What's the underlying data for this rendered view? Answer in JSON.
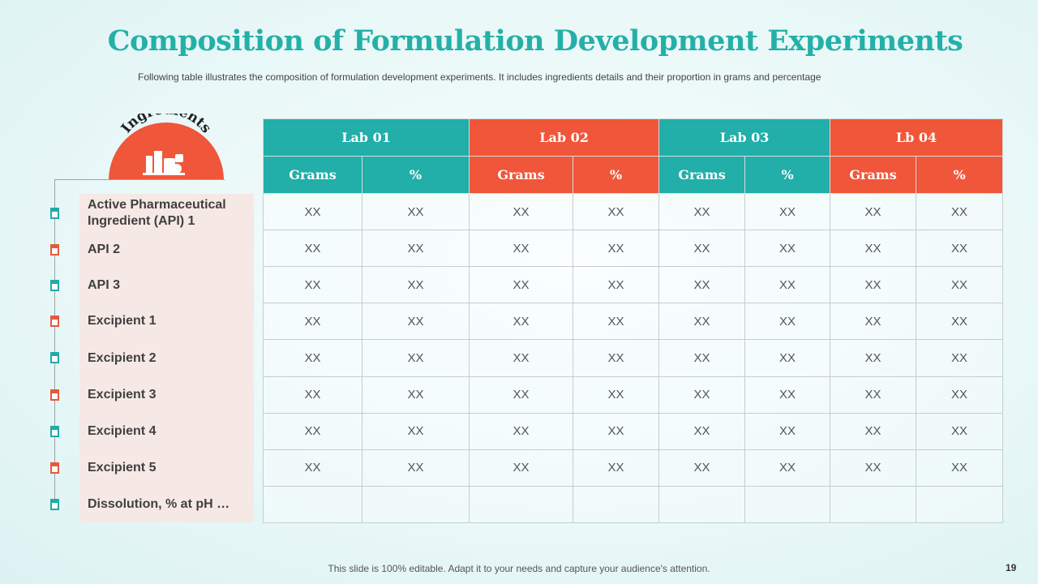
{
  "title": "Composition of Formulation Development Experiments",
  "subtitle": "Following table illustrates the composition of formulation development  experiments. It includes ingredients details and their proportion in grams and percentage",
  "badge_label": "Ingredients",
  "ingredients": [
    {
      "label": "Active Pharmaceutical Ingredient (API) 1",
      "marker": "teal"
    },
    {
      "label": "API 2",
      "marker": "red"
    },
    {
      "label": "API 3",
      "marker": "teal"
    },
    {
      "label": "Excipient 1",
      "marker": "red"
    },
    {
      "label": "Excipient 2",
      "marker": "teal"
    },
    {
      "label": "Excipient 3",
      "marker": "red"
    },
    {
      "label": "Excipient 4",
      "marker": "teal"
    },
    {
      "label": "Excipient 5",
      "marker": "red"
    },
    {
      "label": "Dissolution, % at pH …",
      "marker": "teal"
    }
  ],
  "labs": [
    {
      "name": "Lab 01",
      "color": "#22aea9"
    },
    {
      "name": "Lab 02",
      "color": "#f05639"
    },
    {
      "name": "Lab 03",
      "color": "#22aea9"
    },
    {
      "name": "Lb 04",
      "color": "#f05639"
    }
  ],
  "subheaders": [
    "Grams",
    "%",
    "Grams",
    "%",
    "Grams",
    "%",
    "Grams",
    "%"
  ],
  "rows": [
    [
      "XX",
      "XX",
      "XX",
      "XX",
      "XX",
      "XX",
      "XX",
      "XX"
    ],
    [
      "XX",
      "XX",
      "XX",
      "XX",
      "XX",
      "XX",
      "XX",
      "XX"
    ],
    [
      "XX",
      "XX",
      "XX",
      "XX",
      "XX",
      "XX",
      "XX",
      "XX"
    ],
    [
      "XX",
      "XX",
      "XX",
      "XX",
      "XX",
      "XX",
      "XX",
      "XX"
    ],
    [
      "XX",
      "XX",
      "XX",
      "XX",
      "XX",
      "XX",
      "XX",
      "XX"
    ],
    [
      "XX",
      "XX",
      "XX",
      "XX",
      "XX",
      "XX",
      "XX",
      "XX"
    ],
    [
      "XX",
      "XX",
      "XX",
      "XX",
      "XX",
      "XX",
      "XX",
      "XX"
    ],
    [
      "XX",
      "XX",
      "XX",
      "XX",
      "XX",
      "XX",
      "XX",
      "XX"
    ],
    [
      "",
      "",
      "",
      "",
      "",
      "",
      "",
      ""
    ]
  ],
  "footer": "This slide is 100% editable. Adapt it to your needs and capture your audience's attention.",
  "page_number": "19"
}
